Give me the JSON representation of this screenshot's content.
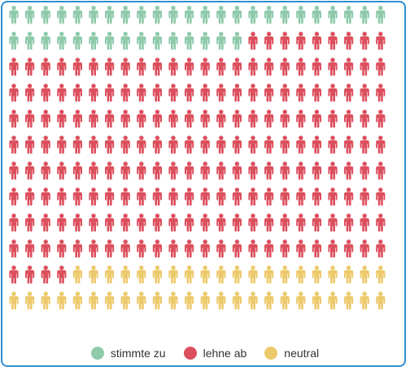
{
  "chart_data": {
    "type": "pictogram",
    "unit_icon": "person-icon",
    "rows": 12,
    "columns": 24,
    "series": [
      {
        "name": "stimmte zu",
        "count": 39,
        "color": "#8fcaaa"
      },
      {
        "name": "lehne ab",
        "count": 205,
        "color": "#dc4f5d"
      },
      {
        "name": "neutral",
        "count": 44,
        "color": "#ecc96a"
      }
    ],
    "legend_position": "bottom"
  }
}
